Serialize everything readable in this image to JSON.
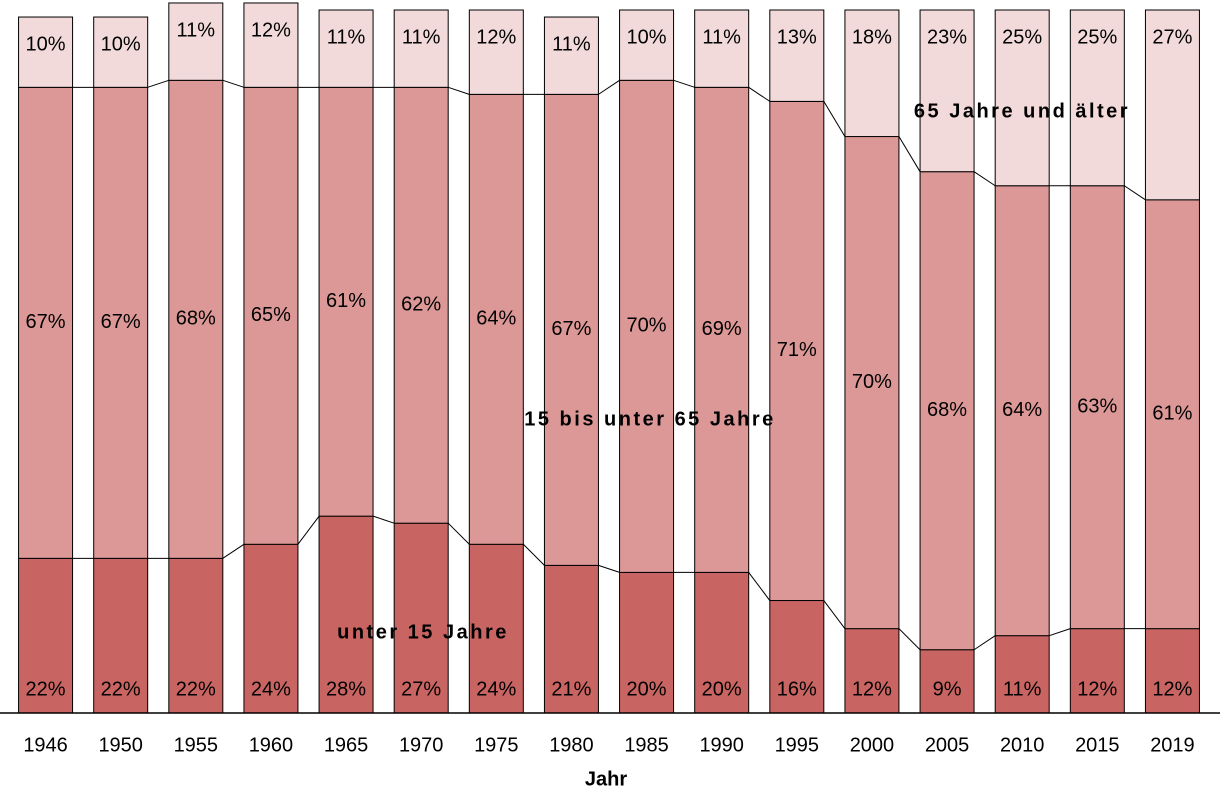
{
  "chart_data": {
    "type": "stacked_bar",
    "x_label": "Jahr",
    "categories": [
      "1946",
      "1950",
      "1955",
      "1960",
      "1965",
      "1970",
      "1975",
      "1980",
      "1985",
      "1990",
      "1995",
      "2000",
      "2005",
      "2010",
      "2015",
      "2019"
    ],
    "ylim": [
      0,
      100
    ],
    "series": [
      {
        "name": "unter 15 Jahre",
        "color": "#c86461",
        "values": [
          22,
          22,
          22,
          24,
          28,
          27,
          24,
          21,
          20,
          20,
          16,
          12,
          9,
          11,
          12,
          12
        ],
        "value_labels": [
          "22%",
          "22%",
          "22%",
          "24%",
          "28%",
          "27%",
          "24%",
          "21%",
          "20%",
          "20%",
          "16%",
          "12%",
          "9%",
          "11%",
          "12%",
          "12%"
        ]
      },
      {
        "name": "15 bis unter 65 Jahre",
        "color": "#dc9896",
        "values": [
          67,
          67,
          68,
          65,
          61,
          62,
          64,
          67,
          70,
          69,
          71,
          70,
          68,
          64,
          63,
          61
        ],
        "value_labels": [
          "67%",
          "67%",
          "68%",
          "65%",
          "61%",
          "62%",
          "64%",
          "67%",
          "70%",
          "69%",
          "71%",
          "70%",
          "68%",
          "64%",
          "63%",
          "61%"
        ]
      },
      {
        "name": "65 Jahre und älter",
        "color": "#f2dada",
        "values": [
          10,
          10,
          11,
          12,
          11,
          11,
          12,
          11,
          10,
          11,
          13,
          18,
          23,
          25,
          25,
          27
        ],
        "value_labels": [
          "10%",
          "10%",
          "11%",
          "12%",
          "11%",
          "11%",
          "12%",
          "11%",
          "10%",
          "11%",
          "13%",
          "18%",
          "23%",
          "25%",
          "25%",
          "27%"
        ]
      }
    ]
  }
}
